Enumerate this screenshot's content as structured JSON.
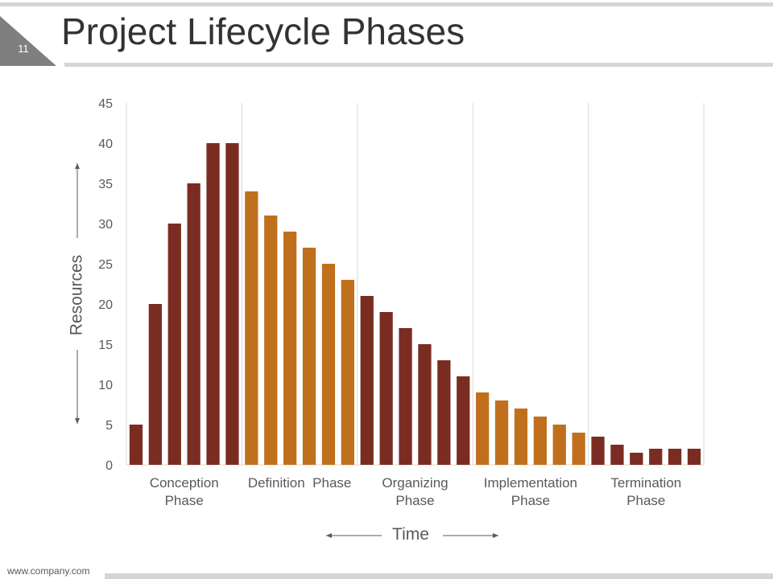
{
  "slide": {
    "number": "11",
    "title": "Project Lifecycle Phases",
    "footer": "www.company.com"
  },
  "colors": {
    "dark_bar": "#7b2c22",
    "light_bar": "#c0701d",
    "gridline": "#d9d9d9",
    "axis_text": "#595959",
    "tab": "#7f7f7f"
  },
  "chart_data": {
    "type": "bar",
    "title": "",
    "xlabel": "Time",
    "ylabel": "Resources",
    "ylim": [
      0,
      45
    ],
    "yticks": [
      0,
      5,
      10,
      15,
      20,
      25,
      30,
      35,
      40,
      45
    ],
    "phases": [
      {
        "label_lines": [
          "Conception",
          "Phase"
        ],
        "tone": "dark",
        "values": [
          5,
          20,
          30,
          35,
          40,
          40
        ]
      },
      {
        "label_lines": [
          "Definition  Phase"
        ],
        "tone": "light",
        "values": [
          34,
          31,
          29,
          27,
          25,
          23
        ]
      },
      {
        "label_lines": [
          "Organizing",
          "Phase"
        ],
        "tone": "dark",
        "values": [
          21,
          19,
          17,
          15,
          13,
          11
        ]
      },
      {
        "label_lines": [
          "Implementation",
          "Phase"
        ],
        "tone": "light",
        "values": [
          9,
          8,
          7,
          6,
          5,
          4
        ]
      },
      {
        "label_lines": [
          "Termination",
          "Phase"
        ],
        "tone": "dark",
        "values": [
          3.5,
          2.5,
          1.5,
          2,
          2,
          2
        ]
      }
    ]
  }
}
